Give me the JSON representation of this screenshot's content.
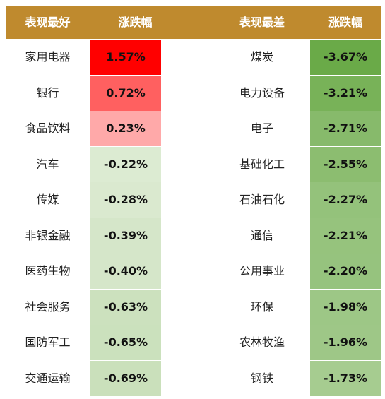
{
  "chart_data": {
    "type": "table",
    "columns": [
      "表现最好",
      "涨跌幅",
      "表现最差",
      "涨跌幅"
    ],
    "best": [
      {
        "name": "家用电器",
        "value": "1.57%",
        "num": 1.57
      },
      {
        "name": "银行",
        "value": "0.72%",
        "num": 0.72
      },
      {
        "name": "食品饮料",
        "value": "0.23%",
        "num": 0.23
      },
      {
        "name": "汽车",
        "value": "-0.22%",
        "num": -0.22
      },
      {
        "name": "传媒",
        "value": "-0.28%",
        "num": -0.28
      },
      {
        "name": "非银金融",
        "value": "-0.39%",
        "num": -0.39
      },
      {
        "name": "医药生物",
        "value": "-0.40%",
        "num": -0.4
      },
      {
        "name": "社会服务",
        "value": "-0.63%",
        "num": -0.63
      },
      {
        "name": "国防军工",
        "value": "-0.65%",
        "num": -0.65
      },
      {
        "name": "交通运输",
        "value": "-0.69%",
        "num": -0.69
      }
    ],
    "worst": [
      {
        "name": "煤炭",
        "value": "-3.67%",
        "num": -3.67
      },
      {
        "name": "电力设备",
        "value": "-3.21%",
        "num": -3.21
      },
      {
        "name": "电子",
        "value": "-2.71%",
        "num": -2.71
      },
      {
        "name": "基础化工",
        "value": "-2.55%",
        "num": -2.55
      },
      {
        "name": "石油石化",
        "value": "-2.27%",
        "num": -2.27
      },
      {
        "name": "通信",
        "value": "-2.21%",
        "num": -2.21
      },
      {
        "name": "公用事业",
        "value": "-2.20%",
        "num": -2.2
      },
      {
        "name": "环保",
        "value": "-1.98%",
        "num": -1.98
      },
      {
        "name": "农林牧渔",
        "value": "-1.96%",
        "num": -1.96
      },
      {
        "name": "钢铁",
        "value": "-1.73%",
        "num": -1.73
      }
    ],
    "colors": {
      "header_bg": "#bf8a2e",
      "header_text": "#ffffff",
      "positive_max": "#ff0000",
      "negative_max": "#6aaa48"
    }
  }
}
